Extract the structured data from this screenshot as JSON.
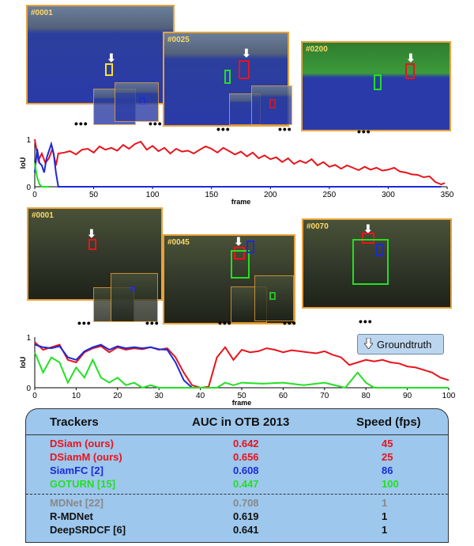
{
  "top_panels": [
    {
      "frame": "#0001"
    },
    {
      "frame": "#0025"
    },
    {
      "frame": "#0200"
    }
  ],
  "bottom_panels": [
    {
      "frame": "#0001"
    },
    {
      "frame": "#0045"
    },
    {
      "frame": "#0070"
    }
  ],
  "ellipsis": "•••",
  "legend": {
    "groundtruth": "Groundtruth"
  },
  "colors": {
    "dsiam": "#e8141c",
    "siamfc": "#1c2ad6",
    "goturn": "#22e022",
    "mdnet": "#888888",
    "black": "#111111",
    "panel_border": "#e8a23a"
  },
  "chart_data": [
    {
      "type": "line",
      "xlabel": "frame",
      "ylabel": "IoU",
      "xlim": [
        0,
        350
      ],
      "ylim": [
        0,
        1
      ],
      "xticks": [
        0,
        50,
        100,
        150,
        200,
        250,
        300,
        350
      ],
      "yticks": [
        0,
        1
      ],
      "series": [
        {
          "color": "red",
          "x": [
            0,
            3,
            6,
            9,
            12,
            15,
            18,
            20,
            25,
            30,
            35,
            40,
            45,
            50,
            55,
            60,
            65,
            70,
            75,
            80,
            85,
            90,
            95,
            100,
            105,
            110,
            115,
            120,
            125,
            130,
            135,
            140,
            145,
            150,
            155,
            160,
            165,
            170,
            175,
            180,
            185,
            190,
            195,
            200,
            205,
            210,
            215,
            220,
            225,
            230,
            235,
            240,
            245,
            250,
            255,
            260,
            265,
            270,
            275,
            280,
            285,
            290,
            295,
            300,
            305,
            310,
            315,
            320,
            325,
            330,
            335,
            340,
            345,
            348
          ],
          "y": [
            1.0,
            0.55,
            0.7,
            0.5,
            0.6,
            0.8,
            0.45,
            0.7,
            0.72,
            0.75,
            0.68,
            0.78,
            0.8,
            0.72,
            0.85,
            0.78,
            0.82,
            0.76,
            0.88,
            0.8,
            0.9,
            0.95,
            0.78,
            0.86,
            0.75,
            0.82,
            0.7,
            0.8,
            0.74,
            0.76,
            0.7,
            0.78,
            0.85,
            0.8,
            0.72,
            0.82,
            0.75,
            0.68,
            0.74,
            0.64,
            0.72,
            0.6,
            0.66,
            0.58,
            0.62,
            0.52,
            0.6,
            0.48,
            0.55,
            0.5,
            0.58,
            0.45,
            0.52,
            0.42,
            0.46,
            0.38,
            0.45,
            0.4,
            0.35,
            0.42,
            0.36,
            0.4,
            0.34,
            0.36,
            0.4,
            0.32,
            0.3,
            0.26,
            0.25,
            0.2,
            0.22,
            0.1,
            0.05,
            0.08
          ]
        },
        {
          "color": "blue",
          "x": [
            0,
            2,
            4,
            6,
            8,
            10,
            12,
            14,
            16,
            18,
            20,
            22,
            25,
            30,
            100,
            200,
            300,
            342,
            345
          ],
          "y": [
            0.3,
            0.8,
            0.5,
            0.45,
            0.3,
            0.6,
            0.75,
            0.9,
            0.7,
            0.3,
            0.0,
            0.0,
            0.0,
            0.0,
            0.0,
            0.0,
            0.0,
            0.0,
            0.0
          ]
        },
        {
          "color": "green",
          "x": [
            0,
            2,
            4,
            6,
            8,
            10,
            12
          ],
          "y": [
            0.5,
            0.2,
            0.05,
            0.0,
            0.0,
            0.0,
            0.0
          ]
        }
      ]
    },
    {
      "type": "line",
      "xlabel": "frame",
      "ylabel": "IoU",
      "xlim": [
        0,
        100
      ],
      "ylim": [
        0,
        1
      ],
      "xticks": [
        0,
        10,
        20,
        30,
        40,
        50,
        60,
        70,
        80,
        90,
        100
      ],
      "yticks": [
        0,
        1
      ],
      "series": [
        {
          "color": "red",
          "x": [
            0,
            2,
            4,
            6,
            8,
            10,
            12,
            14,
            16,
            18,
            20,
            22,
            24,
            26,
            28,
            30,
            32,
            34,
            36,
            38,
            40,
            42,
            44,
            46,
            48,
            50,
            52,
            54,
            56,
            58,
            60,
            62,
            64,
            66,
            68,
            70,
            72,
            74,
            76,
            78,
            80,
            82,
            84,
            86,
            88,
            90,
            92,
            94,
            96,
            98,
            100
          ],
          "y": [
            0.9,
            0.75,
            0.8,
            0.85,
            0.55,
            0.5,
            0.7,
            0.78,
            0.82,
            0.7,
            0.8,
            0.75,
            0.78,
            0.76,
            0.8,
            0.75,
            0.78,
            0.6,
            0.3,
            0.05,
            0.0,
            0.02,
            0.6,
            0.8,
            0.55,
            0.75,
            0.7,
            0.72,
            0.78,
            0.75,
            0.7,
            0.74,
            0.72,
            0.7,
            0.68,
            0.72,
            0.65,
            0.6,
            0.45,
            0.5,
            0.55,
            0.52,
            0.55,
            0.5,
            0.48,
            0.42,
            0.4,
            0.35,
            0.3,
            0.2,
            0.15
          ]
        },
        {
          "color": "blue",
          "x": [
            0,
            2,
            4,
            6,
            8,
            10,
            12,
            14,
            16,
            18,
            20,
            22,
            24,
            26,
            28,
            30,
            32,
            34,
            36,
            38,
            40
          ],
          "y": [
            0.85,
            0.8,
            0.78,
            0.82,
            0.6,
            0.55,
            0.72,
            0.8,
            0.85,
            0.75,
            0.82,
            0.78,
            0.8,
            0.78,
            0.8,
            0.76,
            0.75,
            0.5,
            0.15,
            0.0,
            0.0
          ]
        },
        {
          "color": "green",
          "x": [
            0,
            2,
            4,
            6,
            8,
            10,
            12,
            14,
            16,
            18,
            20,
            22,
            24,
            26,
            28,
            30,
            34,
            40,
            44,
            46,
            48,
            50,
            55,
            60,
            65,
            70,
            75,
            78,
            80,
            82,
            85,
            90,
            100
          ],
          "y": [
            0.7,
            0.3,
            0.6,
            0.5,
            0.1,
            0.4,
            0.2,
            0.55,
            0.2,
            0.1,
            0.2,
            0.05,
            0.1,
            0.0,
            0.05,
            0.0,
            0.0,
            0.0,
            0.0,
            0.1,
            0.05,
            0.1,
            0.08,
            0.1,
            0.05,
            0.1,
            0.0,
            0.3,
            0.1,
            0.0,
            0.0,
            0.0,
            0.0
          ]
        }
      ]
    },
    {
      "type": "table",
      "columns": [
        "Trackers",
        "AUC in OTB 2013",
        "Speed (fps)"
      ],
      "rows": [
        {
          "name": "DSiam (ours)",
          "auc": "0.642",
          "speed": "45",
          "color": "#e8141c"
        },
        {
          "name": "DSiamM (ours)",
          "auc": "0.656",
          "speed": "25",
          "color": "#e8141c"
        },
        {
          "name": "SiamFC [2]",
          "auc": "0.608",
          "speed": "86",
          "color": "#1c2ad6"
        },
        {
          "name": "GOTURN [15]",
          "auc": "0.447",
          "speed": "100",
          "color": "#22e022"
        },
        {
          "name": "MDNet [22]",
          "auc": "0.708",
          "speed": "1",
          "color": "#888888"
        },
        {
          "name": "R-MDNet",
          "auc": "0.619",
          "speed": "1",
          "color": "#111111"
        },
        {
          "name": "DeepSRDCF [6]",
          "auc": "0.641",
          "speed": "1",
          "color": "#111111"
        }
      ]
    }
  ]
}
